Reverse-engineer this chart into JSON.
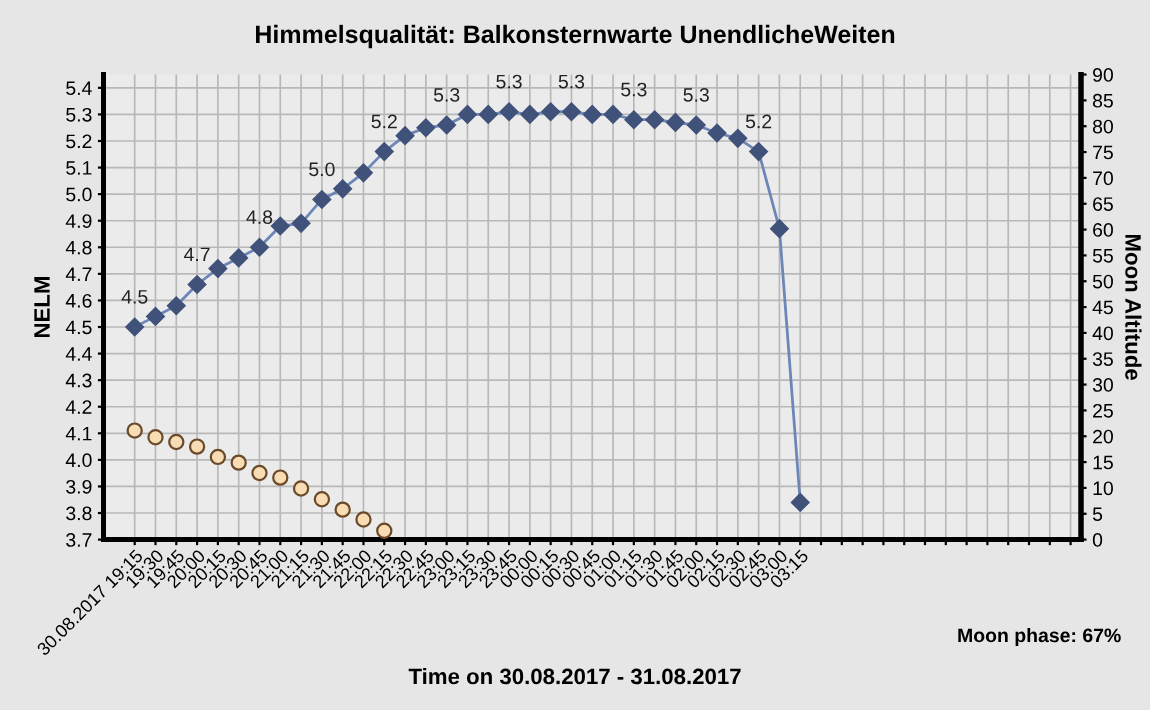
{
  "chart_data": {
    "type": "line",
    "title": "Himmelsqualität: Balkonsternwarte UnendlicheWeiten",
    "xlabel": "Time on 30.08.2017 - 31.08.2017",
    "ylabel": "NELM",
    "y2label": "Moon Altitude",
    "annotations": [
      "Moon phase: 67%"
    ],
    "categories": [
      "30.08.2017 19:15",
      "19:30",
      "19:45",
      "20:00",
      "20:15",
      "20:30",
      "20:45",
      "21:00",
      "21:15",
      "21:30",
      "21:45",
      "22:00",
      "22:15",
      "22:30",
      "22:45",
      "23:00",
      "23:15",
      "23:30",
      "23:45",
      "00:00",
      "00:15",
      "00:30",
      "00:45",
      "01:00",
      "01:15",
      "01:30",
      "01:45",
      "02:00",
      "02:15",
      "02:30",
      "02:45",
      "03:00",
      "03:15",
      null,
      null,
      null,
      null,
      null,
      null,
      null,
      null,
      null,
      null,
      null,
      null,
      null
    ],
    "series": [
      {
        "color": "#40527a",
        "marker": "diamond",
        "line_style": "solid",
        "values": [
          4.5,
          4.54,
          4.58,
          4.66,
          4.72,
          4.76,
          4.8,
          4.88,
          4.89,
          4.98,
          5.02,
          5.08,
          5.16,
          5.22,
          5.25,
          5.26,
          5.3,
          5.3,
          5.31,
          5.3,
          5.31,
          5.31,
          5.3,
          5.3,
          5.28,
          5.28,
          5.27,
          5.26,
          5.23,
          5.21,
          5.16,
          4.87,
          3.84,
          null,
          null,
          null,
          null,
          null,
          null,
          null,
          null,
          null,
          null,
          null,
          null,
          null
        ],
        "value_labels": [
          "4.5",
          null,
          null,
          "4.7",
          null,
          null,
          "4.8",
          null,
          null,
          "5.0",
          null,
          null,
          "5.2",
          null,
          null,
          "5.3",
          null,
          null,
          "5.3",
          null,
          null,
          "5.3",
          null,
          null,
          "5.3",
          null,
          null,
          "5.3",
          null,
          null,
          "5.2",
          null,
          null,
          null,
          null,
          null,
          null,
          null,
          null,
          null,
          null,
          null,
          null,
          null,
          null,
          null
        ]
      },
      {
        "type": "scatter",
        "axis": "y2",
        "color": "#f8dcb4",
        "marker": "circle",
        "values": [
          21.1,
          19.8,
          18.9,
          18.0,
          16.0,
          14.9,
          12.9,
          12.0,
          9.9,
          7.8,
          5.8,
          3.9,
          1.7,
          null,
          null,
          null,
          null,
          null,
          null,
          null,
          null,
          null,
          null,
          null,
          null,
          null,
          null,
          null,
          null,
          null,
          null,
          null,
          null,
          null,
          null,
          null,
          null,
          null,
          null,
          null,
          null,
          null,
          null,
          null,
          null,
          null
        ]
      }
    ],
    "ylim": [
      3.7,
      5.45
    ],
    "yticks": [
      3.7,
      3.8,
      3.9,
      {
        "value": 4.0,
        "label": "4.0"
      },
      4.1,
      4.2,
      4.3,
      4.4,
      4.5,
      4.6,
      4.7,
      4.8,
      4.9,
      {
        "value": 5.0,
        "label": "5.0"
      },
      5.1,
      5.2,
      5.3,
      5.4
    ],
    "y2lim": [
      0,
      90
    ],
    "y2ticks": [
      0,
      5,
      10,
      15,
      20,
      25,
      30,
      35,
      40,
      45,
      50,
      55,
      60,
      65,
      70,
      75,
      80,
      85,
      90
    ],
    "grid": true,
    "legend": false
  }
}
